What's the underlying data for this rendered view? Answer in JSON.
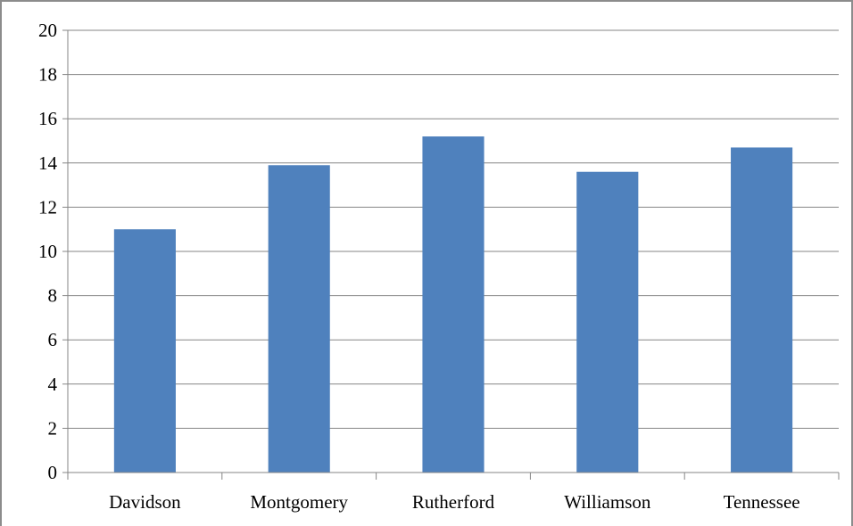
{
  "chart_data": {
    "type": "bar",
    "categories": [
      "Davidson",
      "Montgomery",
      "Rutherford",
      "Williamson",
      "Tennessee"
    ],
    "values": [
      11.0,
      13.9,
      15.2,
      13.6,
      14.7
    ],
    "title": "",
    "xlabel": "",
    "ylabel": "",
    "ylim": [
      0,
      20
    ],
    "yticks": [
      "0",
      "2",
      "4",
      "6",
      "8",
      "10",
      "12",
      "14",
      "16",
      "18",
      "20"
    ],
    "grid": true,
    "legend": "none",
    "colors": {
      "bar": "#4f81bd",
      "grid": "#868686",
      "axis": "#868686"
    }
  }
}
